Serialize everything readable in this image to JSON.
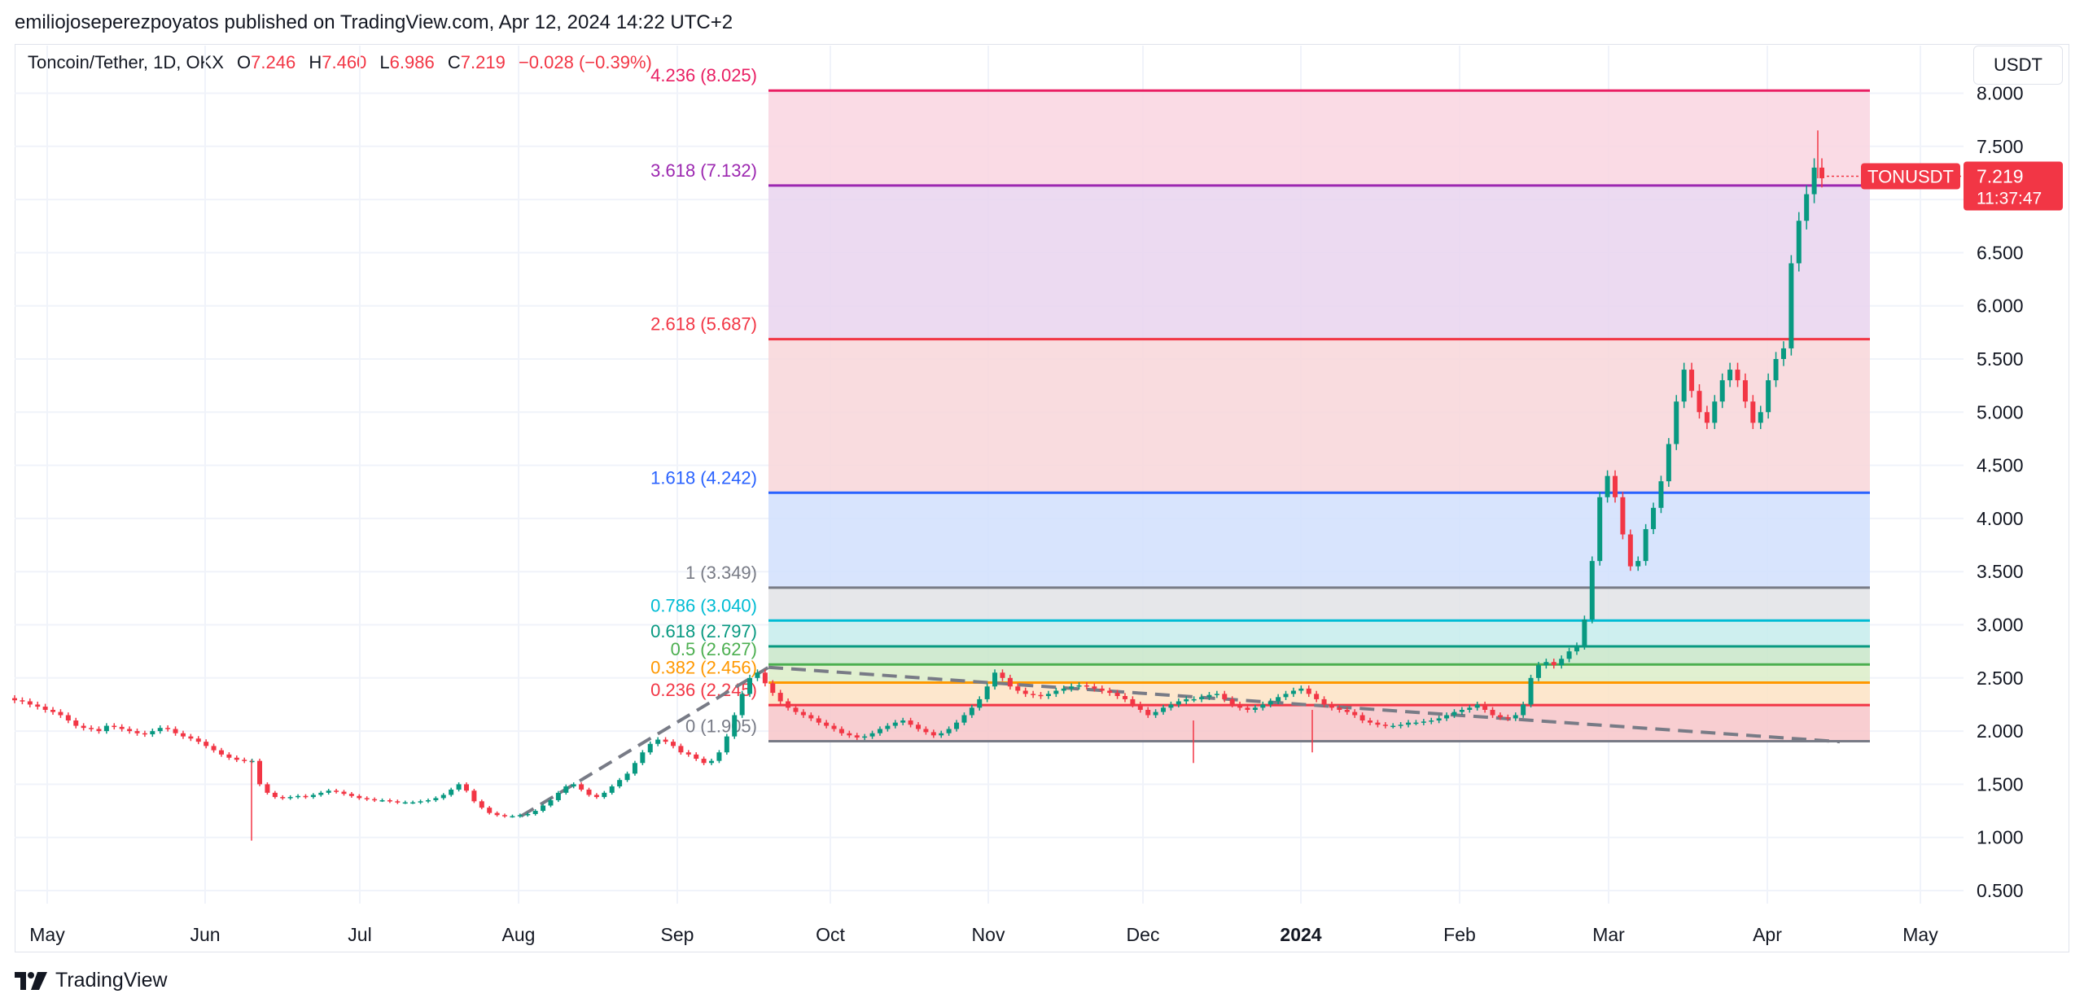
{
  "header": {
    "published_by": "emiliojoseperezpoyatos published on TradingView.com, Apr 12, 2024 14:22 UTC+2"
  },
  "legend": {
    "symbol": "Toncoin/Tether, 1D, OKX",
    "o_label": "O",
    "o_value": "7.246",
    "h_label": "H",
    "h_value": "7.460",
    "l_label": "L",
    "l_value": "6.986",
    "c_label": "C",
    "c_value": "7.219",
    "change": "−0.028 (−0.39%)"
  },
  "currency_button": "USDT",
  "price_tag": {
    "symbol": "TONUSDT",
    "price": "7.219",
    "countdown": "11:37:47"
  },
  "footer": {
    "brand": "TradingView"
  },
  "colors": {
    "up": "#089981",
    "down": "#f23645",
    "tag": "#f23645"
  },
  "chart_data": {
    "type": "candlestick",
    "y_ticks": [
      "0.500",
      "1.000",
      "1.500",
      "2.000",
      "2.500",
      "3.000",
      "3.500",
      "4.000",
      "4.500",
      "5.000",
      "5.500",
      "6.000",
      "6.500",
      "7.000",
      "7.500",
      "8.000"
    ],
    "y_range": [
      0.25,
      8.1
    ],
    "x_ticks": [
      "May",
      "Jun",
      "Jul",
      "Aug",
      "Sep",
      "Oct",
      "Nov",
      "Dec",
      "2024",
      "Feb",
      "Mar",
      "Apr",
      "May"
    ],
    "fib_levels": [
      {
        "label": "0 (1.905)",
        "value": 1.905,
        "color": "#787b86",
        "fill": "#f7c6c9"
      },
      {
        "label": "0.236 (2.245)",
        "value": 2.245,
        "color": "#f23645",
        "fill": "#fde3c4"
      },
      {
        "label": "0.382 (2.456)",
        "value": 2.456,
        "color": "#ff9800",
        "fill": "#dcedc8"
      },
      {
        "label": "0.5 (2.627)",
        "value": 2.627,
        "color": "#4caf50",
        "fill": "#c8e6c9"
      },
      {
        "label": "0.618 (2.797)",
        "value": 2.797,
        "color": "#089981",
        "fill": "#c5ecec"
      },
      {
        "label": "0.786 (3.040)",
        "value": 3.04,
        "color": "#00bcd4",
        "fill": "#e2e3e6"
      },
      {
        "label": "1 (3.349)",
        "value": 3.349,
        "color": "#787b86",
        "fill": "#d1dffd"
      },
      {
        "label": "1.618 (4.242)",
        "value": 4.242,
        "color": "#2962ff",
        "fill": "#f8d6d9"
      },
      {
        "label": "2.618 (5.687)",
        "value": 5.687,
        "color": "#f23645",
        "fill": "#e9d4ef"
      },
      {
        "label": "3.618 (7.132)",
        "value": 7.132,
        "color": "#9c27b0",
        "fill": "#f9d5e1"
      },
      {
        "label": "4.236 (8.025)",
        "value": 8.025,
        "color": "#e91e63",
        "fill": null
      }
    ],
    "close_series": [
      2.29,
      2.28,
      2.25,
      2.23,
      2.2,
      2.18,
      2.15,
      2.1,
      2.05,
      2.03,
      2.02,
      2.0,
      2.05,
      2.04,
      2.02,
      2.0,
      1.98,
      1.97,
      2.0,
      2.03,
      2.02,
      1.98,
      1.95,
      1.93,
      1.9,
      1.86,
      1.82,
      1.78,
      1.75,
      1.73,
      1.72,
      1.72,
      1.5,
      1.42,
      1.38,
      1.37,
      1.38,
      1.39,
      1.38,
      1.4,
      1.42,
      1.44,
      1.43,
      1.41,
      1.39,
      1.37,
      1.36,
      1.35,
      1.35,
      1.34,
      1.33,
      1.33,
      1.33,
      1.34,
      1.35,
      1.37,
      1.4,
      1.45,
      1.5,
      1.44,
      1.34,
      1.28,
      1.23,
      1.21,
      1.2,
      1.2,
      1.21,
      1.22,
      1.25,
      1.3,
      1.35,
      1.42,
      1.48,
      1.5,
      1.45,
      1.4,
      1.38,
      1.42,
      1.48,
      1.54,
      1.6,
      1.7,
      1.8,
      1.88,
      1.92,
      1.9,
      1.86,
      1.8,
      1.78,
      1.74,
      1.7,
      1.72,
      1.8,
      1.95,
      2.15,
      2.35,
      2.5,
      2.55,
      2.45,
      2.36,
      2.28,
      2.22,
      2.18,
      2.15,
      2.12,
      2.08,
      2.05,
      2.02,
      1.98,
      1.96,
      1.94,
      1.95,
      1.98,
      2.02,
      2.05,
      2.08,
      2.1,
      2.06,
      2.02,
      1.99,
      1.96,
      1.98,
      2.02,
      2.08,
      2.15,
      2.22,
      2.3,
      2.42,
      2.55,
      2.5,
      2.42,
      2.38,
      2.35,
      2.34,
      2.33,
      2.35,
      2.38,
      2.4,
      2.42,
      2.43,
      2.42,
      2.4,
      2.38,
      2.36,
      2.33,
      2.3,
      2.25,
      2.2,
      2.15,
      2.18,
      2.22,
      2.25,
      2.28,
      2.3,
      2.3,
      2.32,
      2.34,
      2.35,
      2.3,
      2.25,
      2.22,
      2.2,
      2.22,
      2.25,
      2.28,
      2.32,
      2.35,
      2.38,
      2.4,
      2.35,
      2.3,
      2.25,
      2.22,
      2.2,
      2.18,
      2.15,
      2.1,
      2.08,
      2.06,
      2.05,
      2.05,
      2.06,
      2.08,
      2.08,
      2.09,
      2.1,
      2.12,
      2.15,
      2.18,
      2.2,
      2.22,
      2.25,
      2.2,
      2.15,
      2.13,
      2.12,
      2.15,
      2.25,
      2.5,
      2.62,
      2.65,
      2.62,
      2.68,
      2.75,
      2.8,
      3.05,
      3.6,
      4.2,
      4.4,
      4.2,
      3.85,
      3.55,
      3.6,
      3.9,
      4.1,
      4.35,
      4.7,
      5.1,
      5.4,
      5.2,
      5.0,
      4.9,
      5.1,
      5.3,
      5.4,
      5.3,
      5.1,
      4.9,
      5.0,
      5.3,
      5.5,
      5.6,
      6.4,
      6.8,
      7.05,
      7.3,
      7.2
    ]
  }
}
